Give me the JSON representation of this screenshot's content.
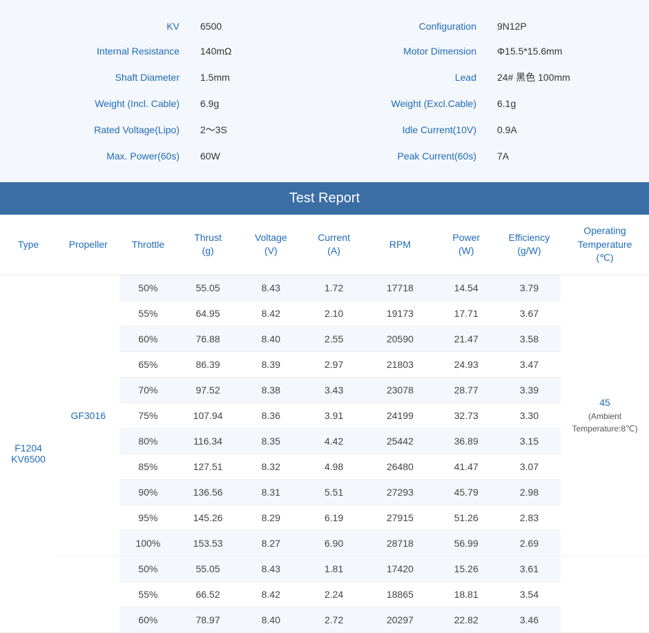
{
  "specs": [
    {
      "l1": "KV",
      "v1": "6500",
      "l2": "Configuration",
      "v2": "9N12P"
    },
    {
      "l1": "Internal Resistance",
      "v1": "140mΩ",
      "l2": "Motor Dimension",
      "v2": "Φ15.5*15.6mm"
    },
    {
      "l1": "Shaft Diameter",
      "v1": "1.5mm",
      "l2": "Lead",
      "v2": "24# 黑色 100mm"
    },
    {
      "l1": "Weight (Incl. Cable)",
      "v1": "6.9g",
      "l2": "Weight (Excl.Cable)",
      "v2": "6.1g"
    },
    {
      "l1": "Rated Voltage(Lipo)",
      "v1": "2～3S",
      "l2": "Idle Current(10V)",
      "v2": "0.9A"
    },
    {
      "l1": "Max. Power(60s)",
      "v1": "60W",
      "l2": "Peak Current(60s)",
      "v2": "7A"
    }
  ],
  "report": {
    "title": "Test Report",
    "columns": [
      "Type",
      "Propeller",
      "Throttle",
      "Thrust\n(g)",
      "Voltage\n(V)",
      "Current\n(A)",
      "RPM",
      "Power\n(W)",
      "Efficiency\n(g/W)",
      "Operating\nTemperature\n(℃)"
    ],
    "type": "F1204\nKV6500",
    "temp_main": "45",
    "temp_sub": "(Ambient Temperature:8℃)",
    "groups": [
      {
        "propeller": "GF3016",
        "rows": [
          [
            "50%",
            "55.05",
            "8.43",
            "1.72",
            "17718",
            "14.54",
            "3.79"
          ],
          [
            "55%",
            "64.95",
            "8.42",
            "2.10",
            "19173",
            "17.71",
            "3.67"
          ],
          [
            "60%",
            "76.88",
            "8.40",
            "2.55",
            "20590",
            "21.47",
            "3.58"
          ],
          [
            "65%",
            "86.39",
            "8.39",
            "2.97",
            "21803",
            "24.93",
            "3.47"
          ],
          [
            "70%",
            "97.52",
            "8.38",
            "3.43",
            "23078",
            "28.77",
            "3.39"
          ],
          [
            "75%",
            "107.94",
            "8.36",
            "3.91",
            "24199",
            "32.73",
            "3.30"
          ],
          [
            "80%",
            "116.34",
            "8.35",
            "4.42",
            "25442",
            "36.89",
            "3.15"
          ],
          [
            "85%",
            "127.51",
            "8.32",
            "4.98",
            "26480",
            "41.47",
            "3.07"
          ],
          [
            "90%",
            "136.56",
            "8.31",
            "5.51",
            "27293",
            "45.79",
            "2.98"
          ],
          [
            "95%",
            "145.26",
            "8.29",
            "6.19",
            "27915",
            "51.26",
            "2.83"
          ],
          [
            "100%",
            "153.53",
            "8.27",
            "6.90",
            "28718",
            "56.99",
            "2.69"
          ]
        ]
      },
      {
        "propeller": "",
        "rows": [
          [
            "50%",
            "55.05",
            "8.43",
            "1.81",
            "17420",
            "15.26",
            "3.61"
          ],
          [
            "55%",
            "66.52",
            "8.42",
            "2.24",
            "18865",
            "18.81",
            "3.54"
          ],
          [
            "60%",
            "78.97",
            "8.40",
            "2.72",
            "20297",
            "22.82",
            "3.46"
          ]
        ]
      }
    ]
  }
}
